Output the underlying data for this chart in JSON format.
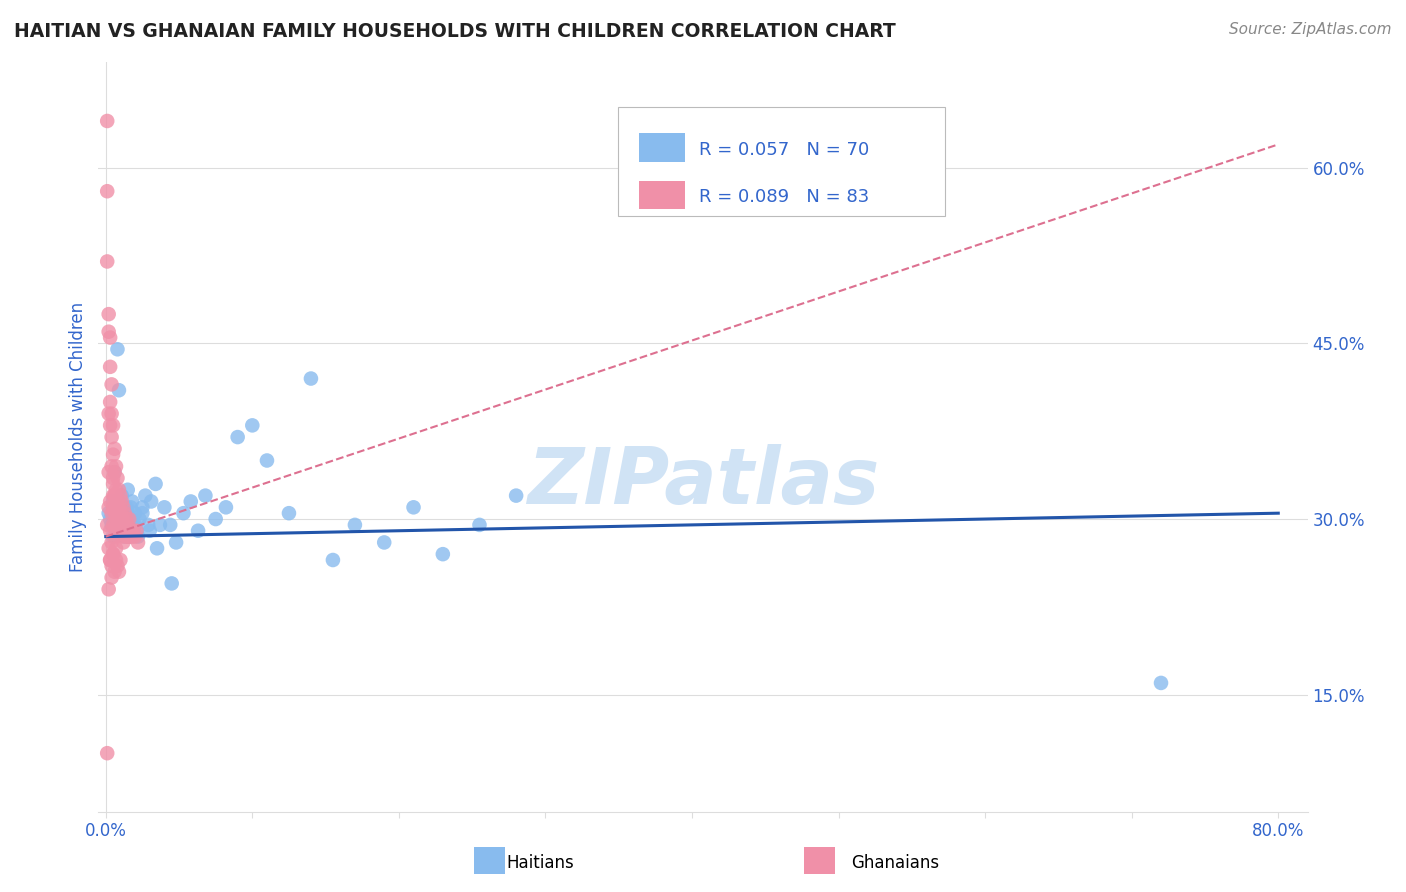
{
  "title": "HAITIAN VS GHANAIAN FAMILY HOUSEHOLDS WITH CHILDREN CORRELATION CHART",
  "source": "Source: ZipAtlas.com",
  "ylabel": "Family Households with Children",
  "y_ticks": [
    0.15,
    0.3,
    0.45,
    0.6
  ],
  "y_tick_labels": [
    "15.0%",
    "30.0%",
    "45.0%",
    "60.0%"
  ],
  "xlim": [
    -0.005,
    0.82
  ],
  "ylim": [
    0.05,
    0.69
  ],
  "haitian_color": "#88BBEE",
  "ghanaian_color": "#F090A8",
  "haitian_line_color": "#2255AA",
  "ghanaian_line_color": "#DD7090",
  "watermark": "ZIPatlas",
  "watermark_color": "#AACCEE",
  "legend_text_color": "#3366CC",
  "title_color": "#222222",
  "axis_label_color": "#3366CC",
  "grid_color": "#DDDDDD",
  "haitian_trend_x": [
    0.0,
    0.8
  ],
  "haitian_trend_y": [
    0.285,
    0.305
  ],
  "ghanaian_trend_x": [
    0.0,
    0.8
  ],
  "ghanaian_trend_y": [
    0.285,
    0.62
  ]
}
